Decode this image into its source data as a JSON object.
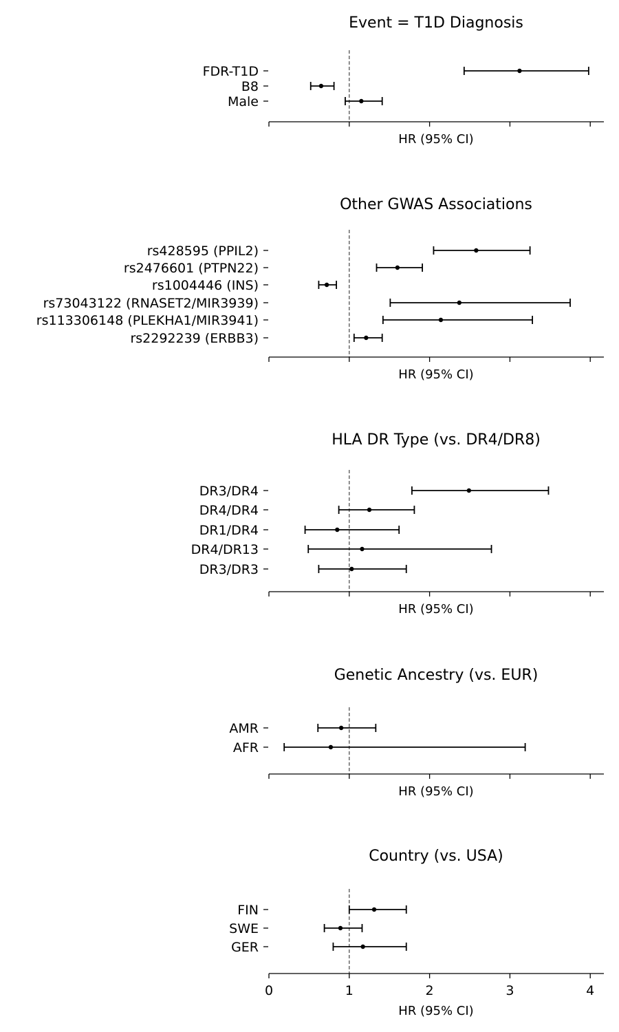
{
  "x_axis": {
    "label": "HR (95% CI)",
    "range": [
      0,
      4.2
    ],
    "ticks": [
      0,
      1,
      2,
      3,
      4
    ],
    "tick_labels_shown_on_last_panel_only": true,
    "reference_line": 1
  },
  "chart_data": [
    {
      "type": "forest",
      "title": "Event = T1D Diagnosis",
      "xlabel": "HR (95% CI)",
      "rows": [
        {
          "label": "FDR-T1D",
          "hr": 3.12,
          "lo": 2.43,
          "hi": 3.98
        },
        {
          "label": "B8",
          "hr": 0.65,
          "lo": 0.52,
          "hi": 0.81
        },
        {
          "label": "Male",
          "hr": 1.15,
          "lo": 0.95,
          "hi": 1.41
        }
      ]
    },
    {
      "type": "forest",
      "title": "Other GWAS Associations",
      "xlabel": "HR (95% CI)",
      "rows": [
        {
          "label": "rs428595 (PPIL2)",
          "hr": 2.58,
          "lo": 2.05,
          "hi": 3.25
        },
        {
          "label": "rs2476601 (PTPN22)",
          "hr": 1.6,
          "lo": 1.34,
          "hi": 1.91
        },
        {
          "label": "rs1004446 (INS)",
          "hr": 0.72,
          "lo": 0.62,
          "hi": 0.84
        },
        {
          "label": "rs73043122 (RNASET2/MIR3939)",
          "hr": 2.37,
          "lo": 1.51,
          "hi": 3.75
        },
        {
          "label": "rs113306148 (PLEKHA1/MIR3941)",
          "hr": 2.14,
          "lo": 1.42,
          "hi": 3.28
        },
        {
          "label": "rs2292239 (ERBB3)",
          "hr": 1.21,
          "lo": 1.06,
          "hi": 1.41
        }
      ]
    },
    {
      "type": "forest",
      "title": "HLA DR Type (vs. DR4/DR8)",
      "xlabel": "HR (95% CI)",
      "rows": [
        {
          "label": "DR3/DR4",
          "hr": 2.49,
          "lo": 1.78,
          "hi": 3.48
        },
        {
          "label": "DR4/DR4",
          "hr": 1.25,
          "lo": 0.87,
          "hi": 1.81
        },
        {
          "label": "DR1/DR4",
          "hr": 0.85,
          "lo": 0.45,
          "hi": 1.62
        },
        {
          "label": "DR4/DR13",
          "hr": 1.16,
          "lo": 0.49,
          "hi": 2.77
        },
        {
          "label": "DR3/DR3",
          "hr": 1.03,
          "lo": 0.62,
          "hi": 1.71
        }
      ]
    },
    {
      "type": "forest",
      "title": "Genetic Ancestry (vs. EUR)",
      "xlabel": "HR (95% CI)",
      "rows": [
        {
          "label": "AMR",
          "hr": 0.9,
          "lo": 0.61,
          "hi": 1.33
        },
        {
          "label": "AFR",
          "hr": 0.77,
          "lo": 0.19,
          "hi": 3.19
        }
      ]
    },
    {
      "type": "forest",
      "title": "Country (vs. USA)",
      "xlabel": "HR (95% CI)",
      "rows": [
        {
          "label": "FIN",
          "hr": 1.31,
          "lo": 1.0,
          "hi": 1.71
        },
        {
          "label": "SWE",
          "hr": 0.89,
          "lo": 0.69,
          "hi": 1.16
        },
        {
          "label": "GER",
          "hr": 1.17,
          "lo": 0.8,
          "hi": 1.71
        }
      ]
    }
  ]
}
